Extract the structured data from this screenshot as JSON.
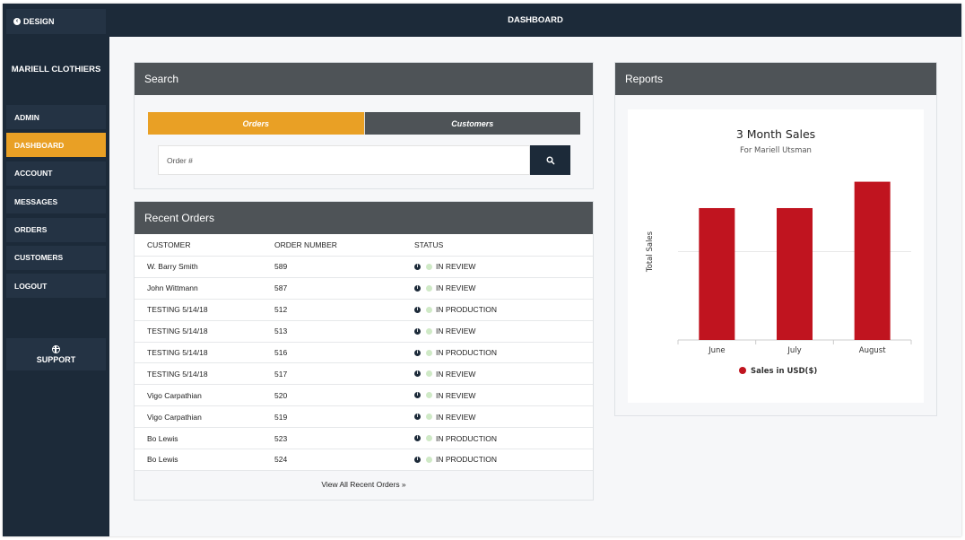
{
  "sidebar": {
    "design_label": "DESIGN",
    "brand": "MARIELL CLOTHIERS",
    "items": [
      {
        "label": "ADMIN"
      },
      {
        "label": "DASHBOARD",
        "active": true
      },
      {
        "label": "ACCOUNT"
      },
      {
        "label": "MESSAGES"
      },
      {
        "label": "ORDERS"
      },
      {
        "label": "CUSTOMERS"
      },
      {
        "label": "LOGOUT"
      }
    ],
    "support_label": "SUPPORT"
  },
  "header": {
    "title": "DASHBOARD"
  },
  "search": {
    "title": "Search",
    "tabs": [
      "Orders",
      "Customers"
    ],
    "placeholder": "Order #"
  },
  "recent_orders": {
    "title": "Recent Orders",
    "columns": [
      "CUSTOMER",
      "ORDER NUMBER",
      "STATUS"
    ],
    "rows": [
      {
        "customer": "W. Barry Smith",
        "order": "589",
        "status": "IN REVIEW"
      },
      {
        "customer": "John Wittmann",
        "order": "587",
        "status": "IN REVIEW"
      },
      {
        "customer": "TESTING 5/14/18",
        "order": "512",
        "status": "IN PRODUCTION"
      },
      {
        "customer": "TESTING 5/14/18",
        "order": "513",
        "status": "IN REVIEW"
      },
      {
        "customer": "TESTING 5/14/18",
        "order": "516",
        "status": "IN PRODUCTION"
      },
      {
        "customer": "TESTING 5/14/18",
        "order": "517",
        "status": "IN REVIEW"
      },
      {
        "customer": "Vigo Carpathian",
        "order": "520",
        "status": "IN REVIEW"
      },
      {
        "customer": "Vigo Carpathian",
        "order": "519",
        "status": "IN REVIEW"
      },
      {
        "customer": "Bo Lewis",
        "order": "523",
        "status": "IN PRODUCTION"
      },
      {
        "customer": "Bo Lewis",
        "order": "524",
        "status": "IN PRODUCTION"
      }
    ],
    "view_all": "View All Recent Orders »"
  },
  "reports": {
    "title": "Reports"
  },
  "chart_data": {
    "type": "bar",
    "title": "3 Month Sales",
    "subtitle": "For Mariell Utsman",
    "categories": [
      "June",
      "July",
      "August"
    ],
    "series": [
      {
        "name": "Sales in USD($)",
        "values": [
          100,
          100,
          120
        ],
        "color": "#c0141f"
      }
    ],
    "xlabel": "",
    "ylabel": "Total Sales",
    "ylim": [
      0,
      134
    ],
    "grid": true,
    "legend": "bottom"
  },
  "colors": {
    "sidebar": "#1c2a39",
    "accent": "#e9a025",
    "panel_header": "#4e5357",
    "bar": "#c0141f",
    "status_dot": "#cfe9c6"
  }
}
